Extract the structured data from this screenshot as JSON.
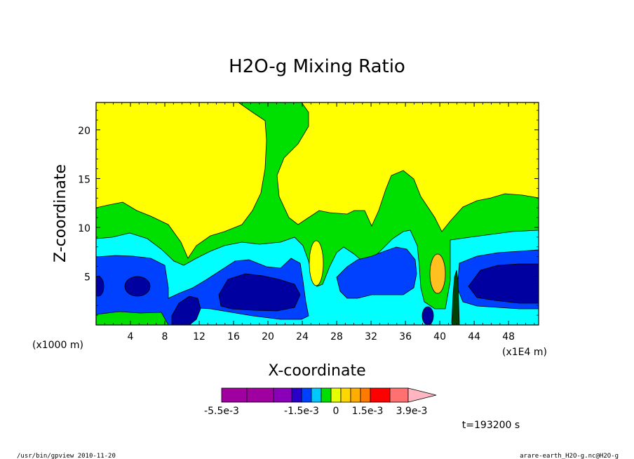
{
  "chart_data": {
    "type": "heatmap",
    "title": "H2O-g Mixing Ratio",
    "xlabel": "X-coordinate",
    "ylabel": "Z-coordinate",
    "x_unit_left": "(x1000 m)",
    "x_unit_right": "(x1E4 m)",
    "xlim": [
      0,
      51.5
    ],
    "ylim": [
      0,
      22.8
    ],
    "xticks": [
      "4",
      "8",
      "12",
      "16",
      "20",
      "24",
      "28",
      "32",
      "36",
      "40",
      "44",
      "48"
    ],
    "xtick_values": [
      4,
      8,
      12,
      16,
      20,
      24,
      28,
      32,
      36,
      40,
      44,
      48
    ],
    "yticks": [
      "5",
      "10",
      "15",
      "20"
    ],
    "ytick_values": [
      5,
      10,
      15,
      20
    ],
    "colorbar": {
      "colors": [
        "#a000a0",
        "#a000a0",
        "#8a00b8",
        "#2a00c8",
        "#0040ff",
        "#00c8ff",
        "#00dd00",
        "#e6ff00",
        "#ffd700",
        "#ffae00",
        "#ff7a00",
        "#ff0000",
        "#ff7070",
        "#ffb6c1"
      ],
      "labels": [
        "-5.5e-3",
        "-1.5e-3",
        "0",
        "1.5e-3",
        "3.9e-3"
      ]
    },
    "time_label": "t=193200 s",
    "regions": [
      {
        "level": "yellow",
        "color": "#ffff00"
      },
      {
        "level": "green",
        "color": "#00e000"
      },
      {
        "level": "cyan",
        "color": "#00ffff"
      },
      {
        "level": "blue",
        "color": "#0040ff"
      },
      {
        "level": "darkblue",
        "color": "#0000a0"
      },
      {
        "level": "orange",
        "color": "#ffc020"
      }
    ]
  },
  "footer": {
    "left": "/usr/bin/gpview  2010-11-20",
    "right": "arare-earth_H2O-g.nc@H2O-g"
  }
}
